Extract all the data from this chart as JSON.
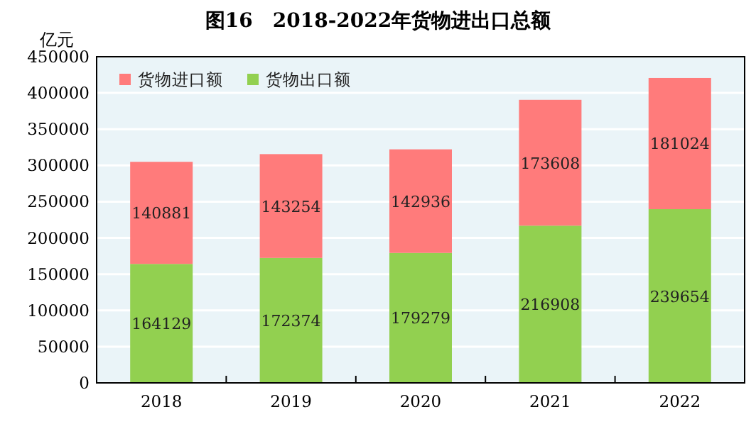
{
  "chart_data": {
    "type": "bar",
    "title": "图16　2018-2022年货物进出口总额",
    "ylabel": "亿元",
    "categories": [
      "2018",
      "2019",
      "2020",
      "2021",
      "2022"
    ],
    "series": [
      {
        "name": "货物出口额",
        "color": "#92d050",
        "values": [
          164129,
          172374,
          179279,
          216908,
          239654
        ]
      },
      {
        "name": "货物进口额",
        "color": "#ff7b7b",
        "values": [
          140881,
          143254,
          142936,
          173608,
          181024
        ]
      }
    ],
    "stacked": true,
    "data_labels": true,
    "grid": "y",
    "legend": "top left",
    "ylim": [
      0,
      450000
    ],
    "yticks": [
      0,
      50000,
      100000,
      150000,
      200000,
      250000,
      300000,
      350000,
      400000,
      450000
    ]
  }
}
